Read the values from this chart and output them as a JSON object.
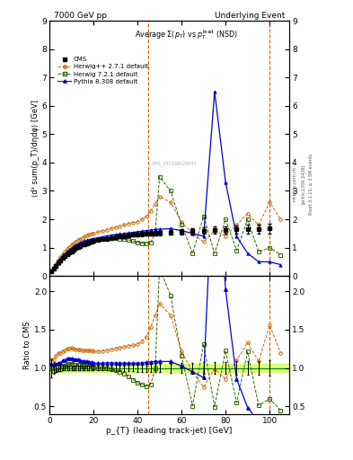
{
  "title_left": "7000 GeV pp",
  "title_right": "Underlying Event",
  "xlabel": "p_{T} (leading track-jet) [GeV]",
  "ylabel_main": "⟨d² sum(p_T)/dηdφ⟩ [GeV]",
  "ylabel_ratio": "Ratio to CMS",
  "right_label1": "Rivet 3.1.10, ≥ 3.5M events",
  "right_label2": "[arXiv:1306.3436]",
  "right_label3": "mcplots.cern.ch",
  "watermark": "CMS_2011S9120041",
  "vline1": 45.0,
  "vline2": 100.0,
  "main_ylim": [
    0.0,
    9.0
  ],
  "ratio_ylim": [
    0.4,
    2.2
  ],
  "xlim": [
    0,
    109
  ],
  "cms_color": "#000000",
  "herwig_color": "#cc6600",
  "herwig72_color": "#336600",
  "pythia_color": "#0000cc",
  "band_color": "#ccff44",
  "line1_color": "#008800",
  "cms_x": [
    1,
    2,
    3,
    4,
    5,
    6,
    7,
    8,
    9,
    10,
    11,
    12,
    13,
    14,
    15,
    16,
    17,
    18,
    19,
    20,
    22,
    24,
    26,
    28,
    30,
    32,
    34,
    36,
    38,
    40,
    42,
    44,
    46,
    48,
    50,
    55,
    60,
    65,
    70,
    75,
    80,
    85,
    90,
    95,
    100
  ],
  "cms_y": [
    0.17,
    0.27,
    0.37,
    0.47,
    0.56,
    0.63,
    0.7,
    0.76,
    0.82,
    0.87,
    0.93,
    0.98,
    1.02,
    1.06,
    1.1,
    1.13,
    1.16,
    1.19,
    1.21,
    1.24,
    1.27,
    1.3,
    1.32,
    1.35,
    1.37,
    1.39,
    1.41,
    1.43,
    1.45,
    1.47,
    1.48,
    1.49,
    1.5,
    1.51,
    1.52,
    1.54,
    1.56,
    1.58,
    1.6,
    1.62,
    1.63,
    1.64,
    1.65,
    1.66,
    1.67
  ],
  "cms_err": [
    0.02,
    0.02,
    0.02,
    0.02,
    0.02,
    0.02,
    0.02,
    0.02,
    0.02,
    0.02,
    0.03,
    0.03,
    0.03,
    0.03,
    0.03,
    0.03,
    0.03,
    0.03,
    0.03,
    0.03,
    0.04,
    0.04,
    0.04,
    0.04,
    0.05,
    0.05,
    0.05,
    0.06,
    0.06,
    0.07,
    0.07,
    0.07,
    0.08,
    0.08,
    0.08,
    0.09,
    0.1,
    0.11,
    0.12,
    0.13,
    0.13,
    0.14,
    0.15,
    0.15,
    0.16
  ],
  "h_x": [
    1,
    2,
    3,
    4,
    5,
    6,
    7,
    8,
    9,
    10,
    11,
    12,
    13,
    14,
    15,
    16,
    17,
    18,
    19,
    20,
    22,
    24,
    26,
    28,
    30,
    32,
    34,
    36,
    38,
    40,
    42,
    44,
    46,
    48,
    50,
    55,
    60,
    65,
    70,
    75,
    80,
    85,
    90,
    95,
    100,
    105
  ],
  "h_y": [
    0.19,
    0.3,
    0.43,
    0.56,
    0.67,
    0.77,
    0.86,
    0.95,
    1.03,
    1.1,
    1.16,
    1.22,
    1.27,
    1.31,
    1.35,
    1.39,
    1.43,
    1.46,
    1.49,
    1.51,
    1.55,
    1.59,
    1.63,
    1.68,
    1.72,
    1.76,
    1.8,
    1.85,
    1.88,
    1.92,
    2.0,
    2.1,
    2.3,
    2.55,
    2.8,
    2.6,
    1.9,
    1.5,
    1.2,
    1.6,
    1.4,
    1.8,
    2.2,
    1.8,
    2.6,
    2.0
  ],
  "h72_x": [
    1,
    2,
    3,
    4,
    5,
    6,
    7,
    8,
    9,
    10,
    11,
    12,
    13,
    14,
    15,
    16,
    17,
    18,
    19,
    20,
    22,
    24,
    26,
    28,
    30,
    32,
    34,
    36,
    38,
    40,
    42,
    44,
    46,
    48,
    50,
    55,
    60,
    65,
    70,
    75,
    80,
    85,
    90,
    95,
    100,
    105
  ],
  "h72_y": [
    0.17,
    0.26,
    0.36,
    0.46,
    0.55,
    0.64,
    0.72,
    0.79,
    0.86,
    0.92,
    0.97,
    1.02,
    1.06,
    1.1,
    1.13,
    1.16,
    1.18,
    1.21,
    1.23,
    1.25,
    1.27,
    1.3,
    1.32,
    1.33,
    1.33,
    1.32,
    1.3,
    1.27,
    1.23,
    1.19,
    1.16,
    1.14,
    1.18,
    1.5,
    3.5,
    3.0,
    1.8,
    0.8,
    2.1,
    0.8,
    2.0,
    0.9,
    2.0,
    0.85,
    1.0,
    0.75
  ],
  "p_x": [
    1,
    2,
    3,
    4,
    5,
    6,
    7,
    8,
    9,
    10,
    11,
    12,
    13,
    14,
    15,
    16,
    17,
    18,
    19,
    20,
    22,
    24,
    26,
    28,
    30,
    32,
    34,
    36,
    38,
    40,
    42,
    44,
    46,
    48,
    50,
    55,
    60,
    65,
    70,
    75,
    80,
    85,
    90,
    95,
    100,
    105
  ],
  "p_y": [
    0.18,
    0.28,
    0.39,
    0.5,
    0.6,
    0.69,
    0.77,
    0.85,
    0.92,
    0.98,
    1.04,
    1.09,
    1.13,
    1.17,
    1.2,
    1.23,
    1.26,
    1.28,
    1.3,
    1.32,
    1.35,
    1.38,
    1.41,
    1.44,
    1.46,
    1.48,
    1.5,
    1.52,
    1.54,
    1.56,
    1.58,
    1.6,
    1.62,
    1.64,
    1.65,
    1.67,
    1.6,
    1.5,
    1.4,
    6.5,
    3.3,
    1.4,
    0.8,
    0.5,
    0.5,
    0.4
  ]
}
